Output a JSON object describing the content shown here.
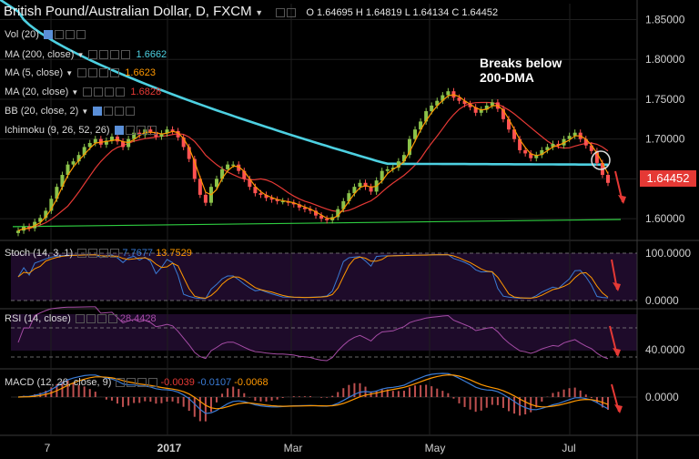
{
  "header": {
    "symbol_title": "British Pound/Australian Dollar, D, FXCM",
    "o_label": "O",
    "o_value": "1.64695",
    "h_label": "H",
    "h_value": "1.64819",
    "l_label": "L",
    "l_value": "1.64134",
    "c_label": "C",
    "c_value": "1.64452"
  },
  "legend": {
    "vol": "Vol (20)",
    "ma200": "MA (200, close)",
    "ma200_value": "1.6662",
    "ma5": "MA (5, close)",
    "ma5_value": "1.6623",
    "ma20": "MA (20, close)",
    "ma20_value": "1.6828",
    "bb": "BB (20, close, 2)",
    "ichimoku": "Ichimoku (9, 26, 52, 26)"
  },
  "annotation": {
    "line1": "Breaks below",
    "line2": "200-DMA"
  },
  "price_axis": {
    "ticks": [
      "1.85000",
      "1.80000",
      "1.75000",
      "1.70000",
      "1.65000",
      "1.60000"
    ],
    "last_price": "1.64452"
  },
  "stoch": {
    "label": "Stoch (14, 3, 1)",
    "v1": "7.7677",
    "v2": "13.7529",
    "ticks": [
      "100.0000",
      "0.0000"
    ]
  },
  "rsi": {
    "label": "RSI (14, close)",
    "v1": "28.4428",
    "ticks": [
      "40.0000"
    ]
  },
  "macd": {
    "label": "MACD (12, 26, close, 9)",
    "v1": "-0.0039",
    "v2": "-0.0107",
    "v3": "-0.0068",
    "ticks": [
      "0.0000"
    ]
  },
  "time_axis": {
    "labels": [
      "7",
      "2017",
      "Mar",
      "May",
      "Jul"
    ]
  },
  "colors": {
    "bull": "#8bc34a",
    "bear": "#ff5252",
    "ma200": "#4dd0e1",
    "ma5": "#ff9800",
    "ma20": "#e53935",
    "trend": "#2ecc40",
    "stoch_k": "#3a7bd5",
    "stoch_d": "#ff9800",
    "rsi": "#a64ca6",
    "panel_bg": "#1e0b2a",
    "arrow": "#e53935"
  },
  "chart_data": {
    "type": "candlestick",
    "title": "British Pound/Australian Dollar, D, FXCM",
    "y_range": [
      1.575,
      1.87
    ],
    "last_close": 1.64452,
    "closes": [
      1.585,
      1.59,
      1.588,
      1.596,
      1.601,
      1.61,
      1.625,
      1.64,
      1.655,
      1.668,
      1.672,
      1.68,
      1.69,
      1.695,
      1.7,
      1.693,
      1.698,
      1.703,
      1.697,
      1.69,
      1.7,
      1.708,
      1.705,
      1.712,
      1.709,
      1.703,
      1.707,
      1.712,
      1.71,
      1.702,
      1.69,
      1.675,
      1.65,
      1.63,
      1.62,
      1.64,
      1.65,
      1.662,
      1.668,
      1.668,
      1.66,
      1.65,
      1.64,
      1.632,
      1.63,
      1.626,
      1.624,
      1.622,
      1.622,
      1.62,
      1.618,
      1.614,
      1.612,
      1.61,
      1.604,
      1.6,
      1.598,
      1.602,
      1.612,
      1.622,
      1.632,
      1.64,
      1.645,
      1.64,
      1.634,
      1.648,
      1.66,
      1.662,
      1.664,
      1.672,
      1.68,
      1.7,
      1.712,
      1.722,
      1.735,
      1.742,
      1.748,
      1.755,
      1.76,
      1.752,
      1.748,
      1.744,
      1.74,
      1.733,
      1.737,
      1.742,
      1.746,
      1.738,
      1.725,
      1.712,
      1.7,
      1.686,
      1.682,
      1.676,
      1.68,
      1.686,
      1.69,
      1.694,
      1.692,
      1.7,
      1.704,
      1.708,
      1.7,
      1.692,
      1.685,
      1.67,
      1.655,
      1.645
    ]
  }
}
